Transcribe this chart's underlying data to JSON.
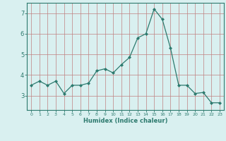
{
  "title": "",
  "xlabel": "Humidex (Indice chaleur)",
  "ylabel": "",
  "x": [
    0,
    1,
    2,
    3,
    4,
    5,
    6,
    7,
    8,
    9,
    10,
    11,
    12,
    13,
    14,
    15,
    16,
    17,
    18,
    19,
    20,
    21,
    22,
    23
  ],
  "y": [
    3.5,
    3.7,
    3.5,
    3.7,
    3.1,
    3.5,
    3.5,
    3.6,
    4.2,
    4.3,
    4.1,
    4.5,
    4.85,
    5.8,
    6.0,
    7.2,
    6.7,
    5.3,
    3.5,
    3.5,
    3.1,
    3.15,
    2.65,
    2.65
  ],
  "line_color": "#2d7a6e",
  "marker": "D",
  "marker_size": 2.0,
  "bg_color": "#d9f0f0",
  "grid_color": "#c08080",
  "axes_color": "#2d7a6e",
  "tick_color": "#2d7a6e",
  "ylim": [
    2.3,
    7.5
  ],
  "xlim": [
    -0.5,
    23.5
  ],
  "yticks": [
    3,
    4,
    5,
    6,
    7
  ],
  "figsize": [
    3.2,
    2.0
  ],
  "dpi": 100
}
